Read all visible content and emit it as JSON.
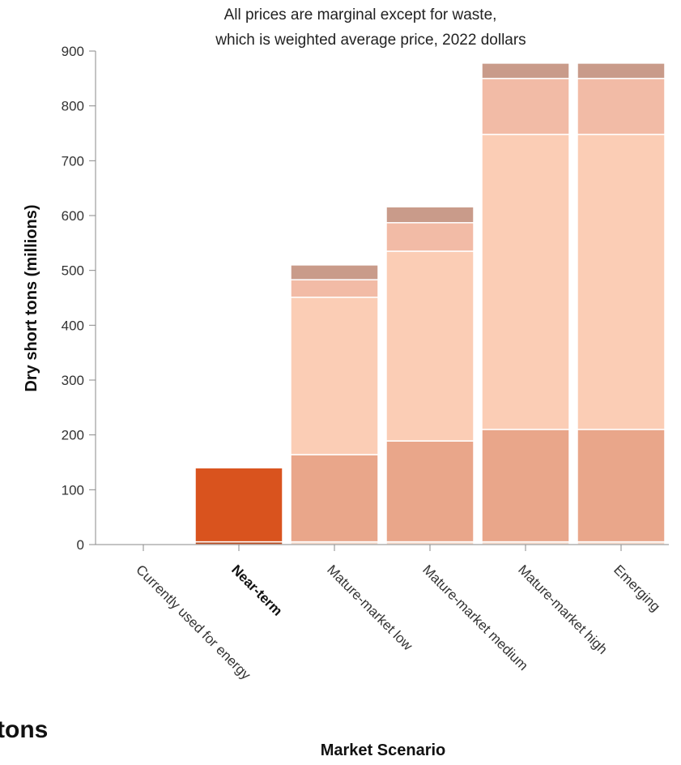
{
  "page": {
    "partial_heading": "tons"
  },
  "chart_data": {
    "type": "bar",
    "stacked": true,
    "title": "",
    "subtitle_lines": [
      "All prices are marginal except for waste,",
      "which is weighted average price, 2022 dollars"
    ],
    "xlabel": "Market Scenario",
    "ylabel": "Dry short tons (millions)",
    "ylim": [
      0,
      900
    ],
    "yticks": [
      0,
      100,
      200,
      300,
      400,
      500,
      600,
      700,
      800,
      900
    ],
    "grid": false,
    "legend": "none",
    "categories": [
      "Currently used for energy",
      "Near-term",
      "Mature-market low",
      "Mature-market medium",
      "Mature-market high",
      "Emerging"
    ],
    "highlighted_category": "Near-term",
    "series": [
      {
        "color": "#f4d8c9",
        "values": [
          0,
          5,
          5,
          5,
          5,
          5
        ]
      },
      {
        "color": "#e9a68a",
        "values": [
          0,
          0,
          159,
          184,
          205,
          205
        ]
      },
      {
        "color": "#fbcdb5",
        "values": [
          0,
          0,
          287,
          346,
          538,
          538
        ]
      },
      {
        "color": "#f2bba6",
        "values": [
          0,
          0,
          32,
          52,
          102,
          102
        ]
      },
      {
        "color": "#c99b8a",
        "values": [
          0,
          0,
          27,
          29,
          28,
          28
        ]
      }
    ],
    "highlight_bar": {
      "category": "Near-term",
      "base_color": "#b84a1e",
      "top_color": "#d9531e",
      "base_value": 5,
      "total_value": 140
    }
  }
}
